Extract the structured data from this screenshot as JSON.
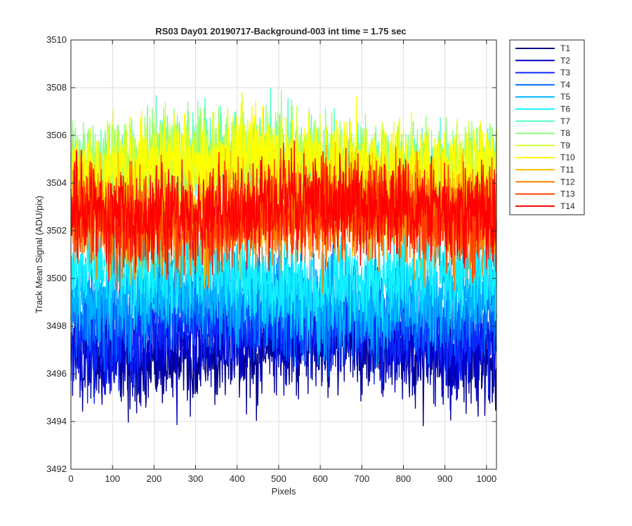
{
  "chart_data": {
    "type": "line",
    "title": "RS03 Day01 20190717-Background-003 int time = 1.75 sec",
    "xlabel": "Pixels",
    "ylabel": "Track Mean Signal (ADU/pix)",
    "xlim": [
      0,
      1024
    ],
    "ylim": [
      3492,
      3510
    ],
    "xticks": [
      0,
      100,
      200,
      300,
      400,
      500,
      600,
      700,
      800,
      900,
      1000
    ],
    "yticks": [
      3492,
      3494,
      3496,
      3498,
      3500,
      3502,
      3504,
      3506,
      3508,
      3510
    ],
    "grid": true,
    "legend_position": "outside-right",
    "points_per_series": 1024,
    "series": [
      {
        "name": "T1",
        "color": "#00008f",
        "mean": 3496.9,
        "noise_sd": 1.0
      },
      {
        "name": "T2",
        "color": "#0000c8",
        "mean": 3497.4,
        "noise_sd": 1.0
      },
      {
        "name": "T3",
        "color": "#0a28ff",
        "mean": 3498.0,
        "noise_sd": 1.0
      },
      {
        "name": "T4",
        "color": "#0070ff",
        "mean": 3498.8,
        "noise_sd": 1.0
      },
      {
        "name": "T5",
        "color": "#00b4ff",
        "mean": 3499.3,
        "noise_sd": 1.0
      },
      {
        "name": "T6",
        "color": "#10f0ff",
        "mean": 3500.2,
        "noise_sd": 1.0
      },
      {
        "name": "T7",
        "color": "#50ffc8",
        "mean": 3504.6,
        "noise_sd": 1.0
      },
      {
        "name": "T8",
        "color": "#90ff80",
        "mean": 3504.8,
        "noise_sd": 1.0
      },
      {
        "name": "T9",
        "color": "#d0ff30",
        "mean": 3504.4,
        "noise_sd": 1.0
      },
      {
        "name": "T10",
        "color": "#ffff00",
        "mean": 3504.8,
        "noise_sd": 1.0
      },
      {
        "name": "T11",
        "color": "#ffc000",
        "mean": 3503.0,
        "noise_sd": 1.0
      },
      {
        "name": "T12",
        "color": "#ff8000",
        "mean": 3502.4,
        "noise_sd": 1.0
      },
      {
        "name": "T13",
        "color": "#ff4000",
        "mean": 3502.6,
        "noise_sd": 1.0
      },
      {
        "name": "T14",
        "color": "#ff0000",
        "mean": 3502.9,
        "noise_sd": 1.0
      }
    ]
  }
}
